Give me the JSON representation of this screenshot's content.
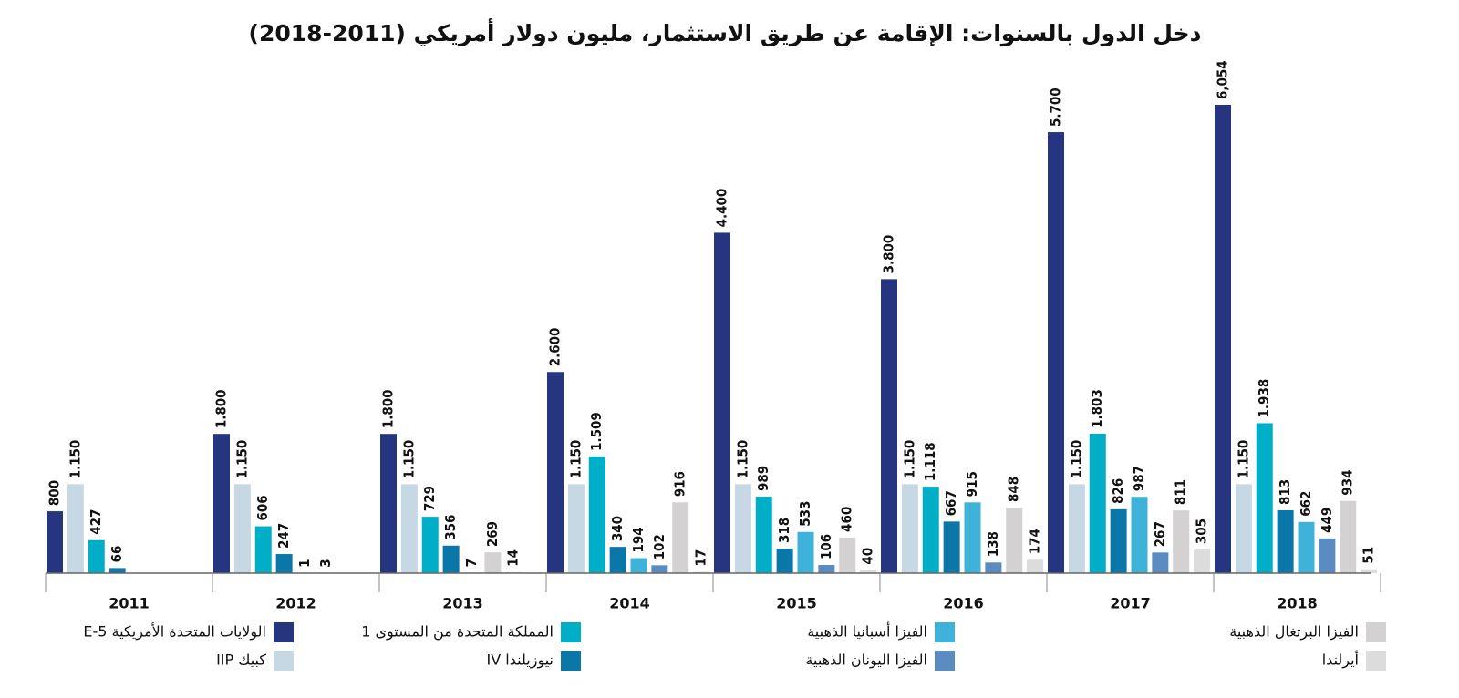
{
  "chart_data": {
    "type": "bar",
    "title": "دخل الدول بالسنوات: الإقامة عن طريق الاستثمار، مليون دولار أمريكي (2011-2018)",
    "categories": [
      "2011",
      "2012",
      "2013",
      "2014",
      "2015",
      "2016",
      "2017",
      "2018"
    ],
    "series": [
      {
        "name": "الولايات المتحدة الأمريكية E-5",
        "color": "#253580",
        "values": [
          800,
          1800,
          1800,
          2600,
          4400,
          3800,
          5700,
          6054
        ],
        "value_labels": [
          "800",
          "1.800",
          "1.800",
          "2.600",
          "4.400",
          "3.800",
          "5.700",
          "6,054"
        ]
      },
      {
        "name": "كبيك IIP",
        "color": "#c6d8e4",
        "values": [
          1150,
          1150,
          1150,
          1150,
          1150,
          1150,
          1150,
          1150
        ],
        "value_labels": [
          "1.150",
          "1.150",
          "1.150",
          "1.150",
          "1.150",
          "1.150",
          "1.150",
          "1.150"
        ]
      },
      {
        "name": "المملكة المتحدة من المستوى 1",
        "color": "#00aec7",
        "values": [
          427,
          606,
          729,
          1509,
          989,
          1118,
          1803,
          1938
        ],
        "value_labels": [
          "427",
          "606",
          "729",
          "1.509",
          "989",
          "1.118",
          "1.803",
          "1.938"
        ]
      },
      {
        "name": "نيوزيلندا IV",
        "color": "#0b76a8",
        "values": [
          66,
          247,
          356,
          340,
          318,
          667,
          826,
          813
        ],
        "value_labels": [
          "66",
          "247",
          "356",
          "340",
          "318",
          "667",
          "826",
          "813"
        ]
      },
      {
        "name": "الفيزا أسبانيا الذهبية",
        "color": "#3fb2da",
        "values": [
          null,
          null,
          null,
          194,
          533,
          915,
          987,
          662
        ],
        "value_labels": [
          null,
          null,
          null,
          "194",
          "533",
          "915",
          "987",
          "662"
        ]
      },
      {
        "name": "الفيزا اليونان الذهبية",
        "color": "#5a8bc1",
        "values": [
          null,
          null,
          7,
          102,
          106,
          138,
          267,
          449
        ],
        "value_labels": [
          null,
          null,
          "7",
          "102",
          "106",
          "138",
          "267",
          "449"
        ]
      },
      {
        "name": "الفيزا البرتغال الذهبية",
        "color": "#d3d1d1",
        "values": [
          null,
          1,
          269,
          916,
          460,
          848,
          811,
          934
        ],
        "value_labels": [
          null,
          "1",
          "269",
          "916",
          "460",
          "848",
          "811",
          "934"
        ]
      },
      {
        "name": "أيرلندا",
        "color": "#dcdcdc",
        "values": [
          null,
          3,
          14,
          17,
          40,
          174,
          305,
          51
        ],
        "value_labels": [
          null,
          "3",
          "14",
          "17",
          "40",
          "174",
          "305",
          "51"
        ]
      }
    ]
  }
}
